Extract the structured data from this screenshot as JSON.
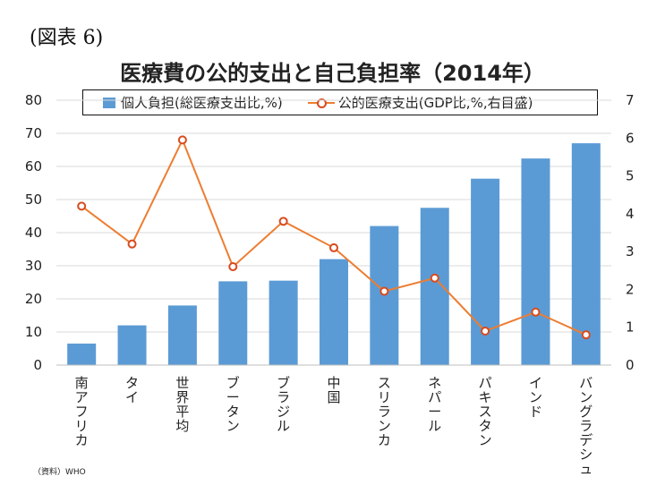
{
  "figure_label": "(図表 6)",
  "source": "（資料）WHO",
  "colors": {
    "bar": "#5B9BD5",
    "line": "#ED7D31",
    "marker_edge": "#D84B1E",
    "grid": "#D9D9D9"
  },
  "chart_data": {
    "type": "bar",
    "title": "医療費の公的支出と自己負担率（2014年）",
    "categories": [
      "南アフリカ",
      "タイ",
      "世界平均",
      "ブータン",
      "ブラジル",
      "中国",
      "スリランカ",
      "ネパール",
      "パキスタン",
      "インド",
      "バングラデシュ"
    ],
    "series": [
      {
        "name": "個人負担(総医療支出比,%)",
        "type": "bar",
        "axis": "left",
        "values": [
          6.5,
          12.0,
          18.0,
          25.3,
          25.5,
          32.0,
          42.0,
          47.5,
          56.3,
          62.4,
          67.0
        ]
      },
      {
        "name": "公的医療支出(GDP比,%,右目盛)",
        "type": "line",
        "axis": "right",
        "values": [
          4.2,
          3.2,
          5.95,
          2.6,
          3.8,
          3.1,
          1.95,
          2.3,
          0.9,
          1.4,
          0.8
        ]
      }
    ],
    "y_left": {
      "ylim": [
        0,
        80
      ],
      "ticks": [
        0,
        10,
        20,
        30,
        40,
        50,
        60,
        70,
        80
      ]
    },
    "y_right": {
      "ylim": [
        0,
        7
      ],
      "ticks": [
        0,
        1,
        2,
        3,
        4,
        5,
        6,
        7
      ]
    },
    "grid": true,
    "legend_position": "top"
  }
}
